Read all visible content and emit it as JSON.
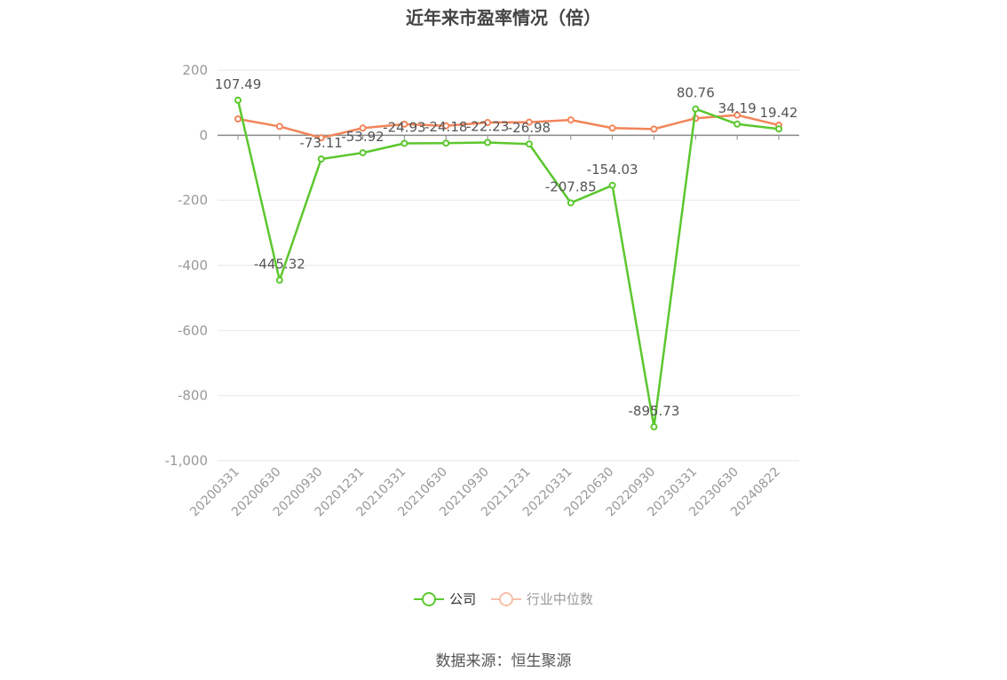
{
  "chart_data": {
    "type": "line",
    "title": "近年来市盈率情况（倍）",
    "categories": [
      "20200331",
      "20200630",
      "20200930",
      "20201231",
      "20210331",
      "20210630",
      "20210930",
      "20211231",
      "20220331",
      "20220630",
      "20220930",
      "20230331",
      "20230630",
      "20240822"
    ],
    "series": [
      {
        "name": "公司",
        "color": "#5cc72e",
        "values": [
          107.49,
          -445.32,
          -73.11,
          -53.92,
          -24.93,
          -24.18,
          -22.23,
          -26.98,
          -207.85,
          -154.03,
          -895.73,
          80.76,
          34.19,
          19.42
        ],
        "labels": [
          "107.49",
          "-445.32",
          "-73.11",
          "-53.92",
          "-24.93",
          "-24.18",
          "-22.23",
          "-26.98",
          "-207.85",
          "-154.03",
          "-895.73",
          "80.76",
          "34.19",
          "19.42"
        ]
      },
      {
        "name": "行业中位数",
        "color": "#f2855a",
        "values": [
          50,
          27,
          -8,
          22,
          34,
          29,
          39,
          40,
          47,
          22,
          19,
          52,
          62,
          31
        ]
      }
    ],
    "yticks": [
      "200",
      "0",
      "-200",
      "-400",
      "-600",
      "-800",
      "-1,000"
    ],
    "ylim": [
      -1000,
      200
    ],
    "grid": true,
    "legend_position": "bottom"
  },
  "source_text": "数据来源：恒生聚源"
}
